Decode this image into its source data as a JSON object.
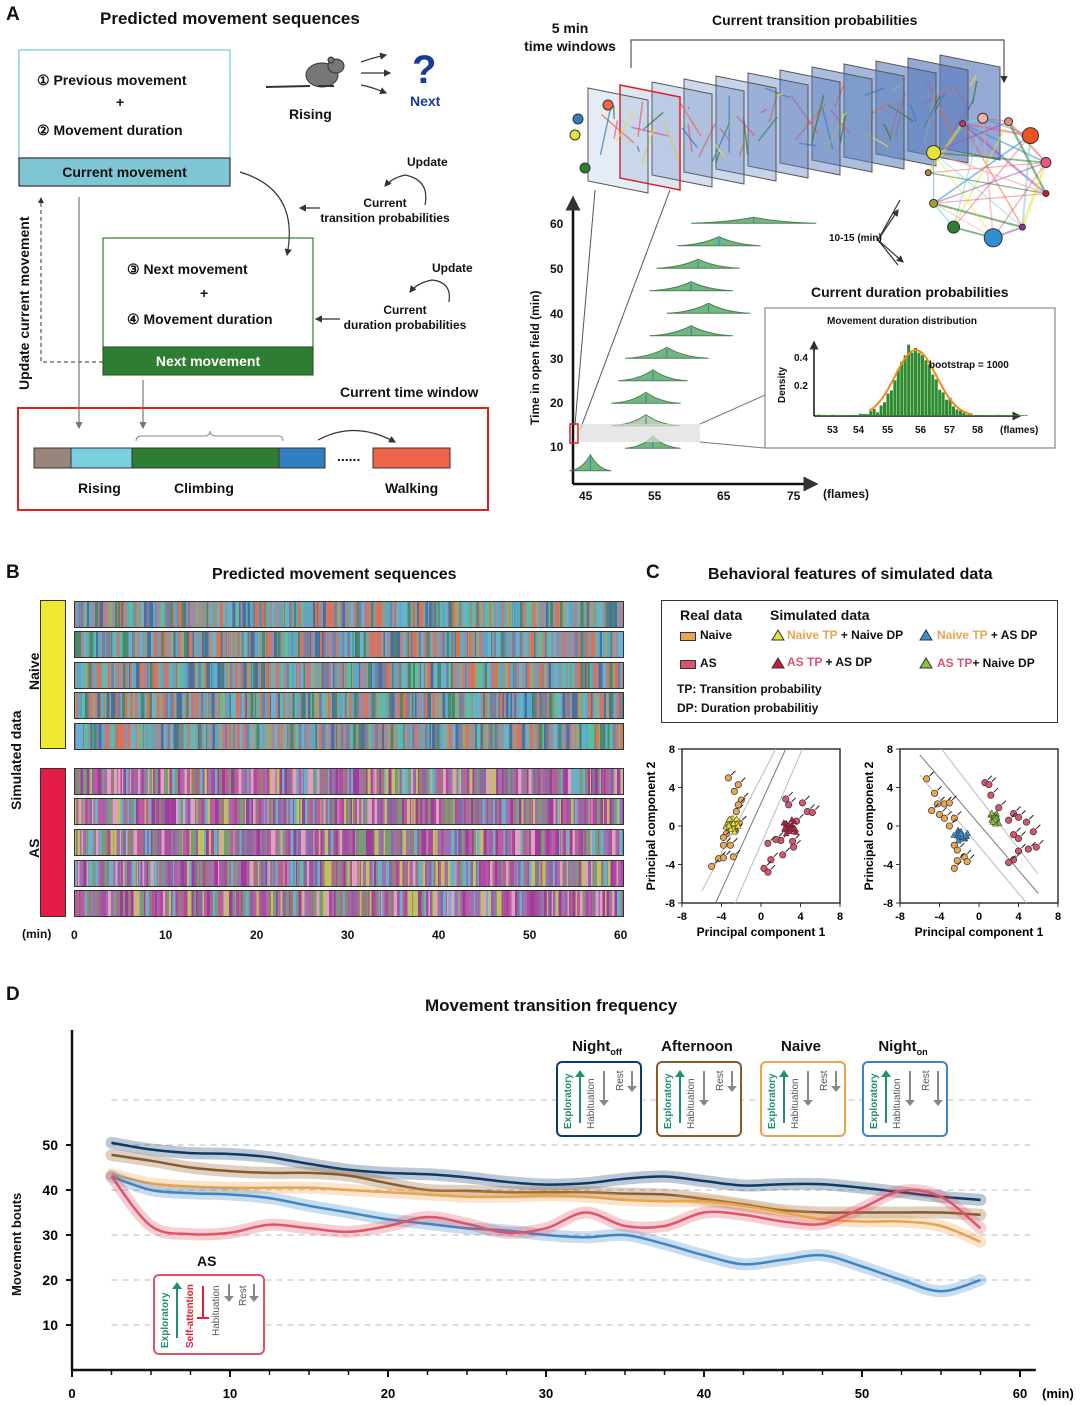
{
  "panelA": {
    "letter": "A",
    "title": "Predicted movement sequences",
    "step1": "① Previous movement",
    "plus": "+",
    "step2": "② Movement duration",
    "current_movement": "Current movement",
    "mouse_label": "Rising",
    "next_symbol": "?",
    "next_label": "Next",
    "update1": "Update",
    "current_tp": "Current",
    "current_tp2": "transition probabilities",
    "step3": "③ Next movement",
    "step4": "④ Movement duration",
    "next_movement": "Next movement",
    "update2": "Update",
    "current_dp": "Current",
    "current_dp2": "duration probabilities",
    "update_current": "Update current movement",
    "time_window_title": "Current time window",
    "sequence_labels": [
      "Rising",
      "Climbing",
      "Walking"
    ],
    "ellipsis": "......",
    "sequence_colors": {
      "brown": "#9a857c",
      "lightblue": "#7ccfe0",
      "green": "#2e7d32",
      "blue": "#2f7fc1",
      "orange": "#f0654a"
    },
    "five_min_1": "5 min",
    "five_min_2": "time windows",
    "ctp_title": "Current transition probabilities",
    "window_label": "10-15 (min)",
    "cdp_title": "Current duration probabilities",
    "inset_title": "Movement duration distribution",
    "bootstrap": "bootstrap = 1000",
    "inset_ylabel": "Density",
    "inset_yticks": [
      "0.4",
      "0.2"
    ],
    "inset_xticks": [
      "53",
      "54",
      "55",
      "56",
      "57",
      "58"
    ],
    "inset_xunit": "(flames)",
    "ridge_ylabel": "Time in open field (min)",
    "ridge_yticks": [
      "60",
      "50",
      "40",
      "30",
      "20",
      "10"
    ],
    "ridge_xticks": [
      "45",
      "55",
      "65",
      "75"
    ],
    "ridge_xunit": "(flames)"
  },
  "panelB": {
    "letter": "B",
    "title": "Predicted movement sequences",
    "group_label": "Simulated data",
    "naive_label": "Naive",
    "as_label": "AS",
    "naive_color": "#f0e831",
    "as_color": "#e31b45",
    "xunit": "(min)",
    "xticks": [
      "0",
      "10",
      "20",
      "30",
      "40",
      "50",
      "60"
    ]
  },
  "panelC": {
    "letter": "C",
    "title": "Behavioral features of simulated data",
    "legend": {
      "real_header": "Real data",
      "sim_header": "Simulated data",
      "real_naive": "Naive",
      "real_as": "AS",
      "sim1_a": "Naive TP",
      "sim1_b": " + Naive DP",
      "sim2_a": "Naive TP",
      "sim2_b": " + AS DP",
      "sim3_a": "AS TP",
      "sim3_b": " +  AS DP",
      "sim4_a": "AS TP",
      "sim4_b": "+  Naive DP",
      "tp_def": "TP: Transition probability",
      "dp_def": "DP: Duration probabilitiy"
    },
    "colors": {
      "naive": "#e8a552",
      "as": "#d9546e",
      "yellow": "#e6e23a",
      "blue": "#3a8fd0",
      "red": "#c0203a",
      "green": "#8ac43a"
    }
  },
  "chart_data": [
    {
      "type": "scatter",
      "title": "",
      "xlabel": "Principal component 1",
      "ylabel": "Principal component 2",
      "xlim": [
        -8,
        8
      ],
      "ylim": [
        -8,
        8
      ],
      "xticks": [
        "-8",
        "-4",
        "0",
        "4",
        "8"
      ],
      "yticks": [
        "8",
        "4",
        "0",
        "-4",
        "-8"
      ],
      "series": [
        {
          "name": "Real Naive",
          "color": "#e8a552",
          "points": [
            [
              -3.3,
              5
            ],
            [
              -2.7,
              3.6
            ],
            [
              -2.3,
              4.3
            ],
            [
              -2,
              2.7
            ],
            [
              -2.3,
              2.2
            ],
            [
              -2.5,
              1.5
            ],
            [
              -3.5,
              -0.8
            ],
            [
              -3.8,
              -1.2
            ],
            [
              -3.8,
              -2
            ],
            [
              -3.1,
              -2
            ],
            [
              -4.3,
              -3.4
            ],
            [
              -3.8,
              -3.3
            ],
            [
              -2.8,
              -3.2
            ],
            [
              -5,
              -4.2
            ],
            [
              -2.2,
              0.3
            ],
            [
              -2.6,
              -0.5
            ]
          ]
        },
        {
          "name": "Naive TP + Naive DP",
          "color": "#e6e23a",
          "points": [
            [
              -3,
              0.2
            ],
            [
              -2.8,
              0.5
            ],
            [
              -3.2,
              -0.1
            ],
            [
              -2.6,
              0.1
            ],
            [
              -3,
              0.6
            ],
            [
              -2.9,
              -0.3
            ]
          ]
        },
        {
          "name": "Real AS",
          "color": "#d9546e",
          "points": [
            [
              2.5,
              2.8
            ],
            [
              2.8,
              2.2
            ],
            [
              4.2,
              2.4
            ],
            [
              4.7,
              1.5
            ],
            [
              5.2,
              1.4
            ],
            [
              3.6,
              0.5
            ],
            [
              2,
              -1.5
            ],
            [
              1.5,
              -1.4
            ],
            [
              0.7,
              -1.8
            ],
            [
              2.2,
              -3
            ],
            [
              1,
              -3.5
            ],
            [
              0.3,
              -4.4
            ],
            [
              0.7,
              -4.8
            ],
            [
              3.2,
              -1.6
            ],
            [
              3.3,
              -2.2
            ]
          ]
        },
        {
          "name": "AS TP + AS DP",
          "color": "#c0203a",
          "points": [
            [
              3,
              -0.2
            ],
            [
              2.7,
              0.1
            ],
            [
              3.2,
              0.3
            ],
            [
              2.9,
              -0.5
            ],
            [
              3.4,
              -0.3
            ],
            [
              2.6,
              -0.4
            ]
          ]
        }
      ],
      "boundary_lines": "diagonal (3 parallel lines, slope positive)"
    },
    {
      "type": "scatter",
      "title": "",
      "xlabel": "Principal component 1",
      "ylabel": "Principal component 2",
      "xlim": [
        -8,
        8
      ],
      "ylim": [
        -8,
        8
      ],
      "xticks": [
        "-8",
        "-4",
        "0",
        "4",
        "8"
      ],
      "yticks": [
        "8",
        "4",
        "0",
        "-4",
        "-8"
      ],
      "series": [
        {
          "name": "Real Naive",
          "color": "#e8a552",
          "points": [
            [
              -5.3,
              4.9
            ],
            [
              -4.5,
              3.4
            ],
            [
              -4.2,
              2.3
            ],
            [
              -3.5,
              2.3
            ],
            [
              -3,
              2.4
            ],
            [
              -4.8,
              1.6
            ],
            [
              -4,
              1.2
            ],
            [
              -3.5,
              0.8
            ],
            [
              -2.5,
              0.8
            ],
            [
              -3,
              0
            ],
            [
              -2.5,
              -2
            ],
            [
              -2.2,
              -2.5
            ],
            [
              -1.5,
              -3.2
            ],
            [
              -1.2,
              -3.7
            ],
            [
              -2.5,
              -4.4
            ],
            [
              -2.2,
              -3.6
            ]
          ]
        },
        {
          "name": "Naive TP + AS DP",
          "color": "#3a8fd0",
          "points": [
            [
              -2,
              -0.8
            ],
            [
              -1.7,
              -1
            ],
            [
              -2.2,
              -0.6
            ],
            [
              -1.8,
              -1.3
            ],
            [
              -1.5,
              -0.7
            ]
          ]
        },
        {
          "name": "Real AS",
          "color": "#d9546e",
          "points": [
            [
              0.6,
              4.5
            ],
            [
              1,
              4.3
            ],
            [
              1.2,
              3.2
            ],
            [
              2,
              1.9
            ],
            [
              3.5,
              1.3
            ],
            [
              4,
              0.9
            ],
            [
              4.8,
              0.4
            ],
            [
              3,
              0.6
            ],
            [
              3.5,
              -0.9
            ],
            [
              4,
              -1.3
            ],
            [
              5.5,
              -0.6
            ],
            [
              5.8,
              -2.2
            ],
            [
              5,
              -2.4
            ],
            [
              4,
              -2.6
            ],
            [
              3.5,
              -3.5
            ],
            [
              3,
              -3.8
            ]
          ]
        },
        {
          "name": "AS TP + Naive DP",
          "color": "#8ac43a",
          "points": [
            [
              1.5,
              1
            ],
            [
              1.8,
              0.8
            ],
            [
              1.3,
              1.3
            ],
            [
              2,
              0.6
            ],
            [
              1.6,
              0.5
            ]
          ]
        }
      ],
      "boundary_lines": "diagonal (3 parallel lines, slope negative)"
    },
    {
      "type": "line",
      "title": "Movement transition frequency",
      "xlabel": "(min)",
      "ylabel": "Movement bouts",
      "xlim": [
        0,
        60
      ],
      "ylim": [
        0,
        70
      ],
      "xticks": [
        "0",
        "10",
        "20",
        "30",
        "40",
        "50",
        "60"
      ],
      "yticks": [
        "50",
        "40",
        "30",
        "20",
        "10"
      ],
      "grid": "dashed horizontal at 10,20,30,40,50,60",
      "x": [
        2.5,
        5,
        7.5,
        10,
        12.5,
        15,
        17.5,
        20,
        22.5,
        25,
        27.5,
        30,
        32.5,
        35,
        37.5,
        40,
        42.5,
        45,
        47.5,
        50,
        52.5,
        55,
        57.5
      ],
      "series": [
        {
          "name": "Night_off",
          "color": "#0d3a66",
          "values": [
            50.5,
            49,
            48.2,
            48,
            47.3,
            45.8,
            44.5,
            43.8,
            43.5,
            42.8,
            41.8,
            41.2,
            41.5,
            42.5,
            43,
            42,
            41,
            41.3,
            41.3,
            40.5,
            39.5,
            38.5,
            37.8
          ]
        },
        {
          "name": "Afternoon",
          "color": "#8a5a2b",
          "values": [
            47.8,
            46.5,
            45,
            44.2,
            43.8,
            43.8,
            43.2,
            41.5,
            40,
            39.8,
            39.5,
            39.5,
            39.5,
            39.2,
            39,
            38,
            36.8,
            35.5,
            35,
            35,
            35,
            35,
            34.5
          ]
        },
        {
          "name": "Naive",
          "color": "#eaa34c",
          "values": [
            43.5,
            41.5,
            40.8,
            40.5,
            40.5,
            40.5,
            40,
            39.5,
            39,
            38.5,
            38.5,
            38.8,
            38.5,
            37.8,
            37.5,
            37.5,
            36.5,
            35,
            33.5,
            33,
            33,
            32,
            28.5
          ]
        },
        {
          "name": "Night_on",
          "color": "#3c86c4",
          "values": [
            43,
            40,
            39.3,
            39,
            38.2,
            36.5,
            35,
            33.5,
            32.5,
            31.5,
            31,
            30,
            29.5,
            30,
            28,
            25.5,
            23.5,
            24.5,
            25.5,
            23,
            20,
            17.5,
            20
          ]
        },
        {
          "name": "AS",
          "color": "#e05468",
          "values": [
            43,
            32,
            30.2,
            30.5,
            32.3,
            31.5,
            30.7,
            32,
            34,
            32.5,
            30.5,
            31.5,
            35,
            32,
            32,
            35,
            34.5,
            33,
            32.5,
            36,
            39.8,
            38.5,
            31.5
          ]
        }
      ],
      "annotations": [
        {
          "label": "Night_off",
          "items": [
            "Exploratory ↑",
            "Habituation ↓",
            "Rest ↓"
          ]
        },
        {
          "label": "Afternoon",
          "items": [
            "Exploratory ↑",
            "Habituation ↓",
            "Rest ↓"
          ]
        },
        {
          "label": "Naive",
          "items": [
            "Exploratory ↑",
            "Habituation ↓",
            "Rest ↓"
          ]
        },
        {
          "label": "Night_on",
          "items": [
            "Exploratory ↑",
            "Habituation ↓",
            "Rest ↓"
          ]
        },
        {
          "label": "AS",
          "items": [
            "Exploratory ↑",
            "Self-attention ⊥",
            "Habituation ↓",
            "Rest ↓"
          ]
        }
      ]
    }
  ],
  "panelD": {
    "letter": "D",
    "title": "Movement transition frequency",
    "ylabel": "Movement bouts",
    "xunit": "(min)",
    "states": [
      {
        "base": "Night",
        "sub": "off",
        "color": "#0d3a66"
      },
      {
        "base": "Afternoon",
        "sub": "",
        "color": "#8a5a2b"
      },
      {
        "base": "Naive",
        "sub": "",
        "color": "#eaa34c"
      },
      {
        "base": "Night",
        "sub": "on",
        "color": "#3c86c4"
      }
    ],
    "exploratory": "Exploratory",
    "habituation": "Habituation",
    "rest": "Rest",
    "self_attention": "Self-attention",
    "as_label": "AS",
    "as_color": "#e05468",
    "teal": "#1f8f73"
  }
}
